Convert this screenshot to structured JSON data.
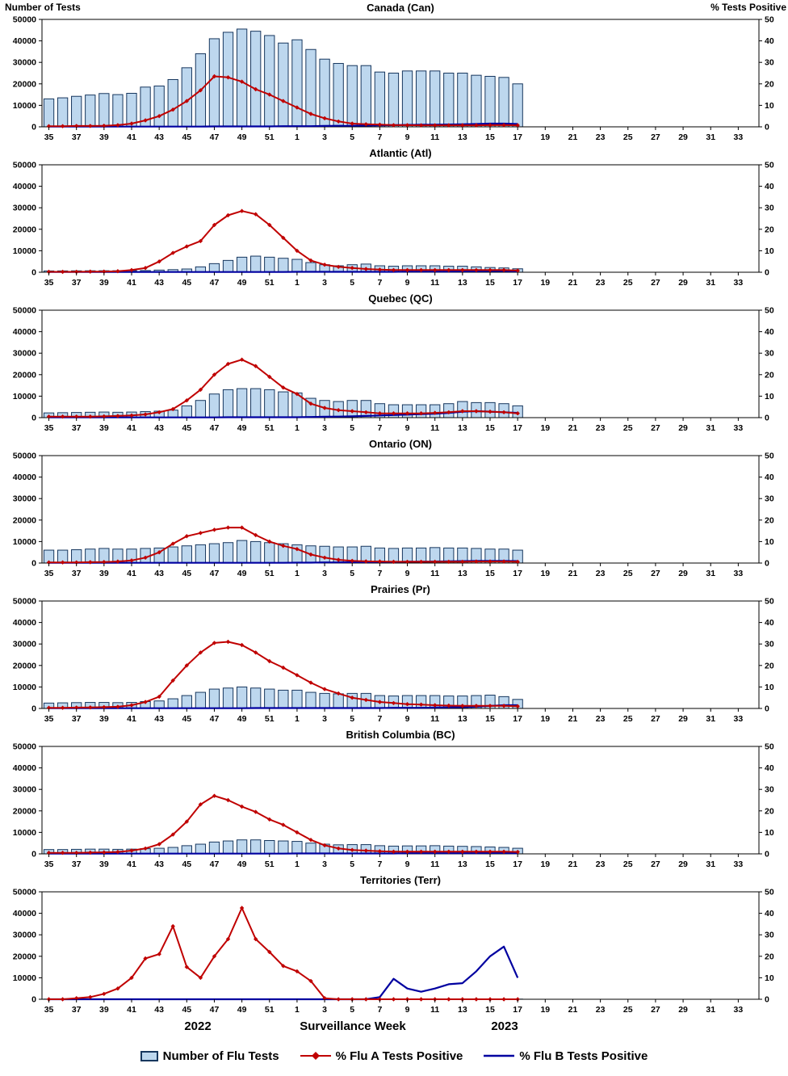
{
  "page": {
    "left_axis_title": "Number of Tests",
    "right_axis_title": "% Tests Positive",
    "x_axis_title": "Surveillance Week",
    "year_left": "2022",
    "year_right": "2023"
  },
  "legend": {
    "tests": "Number of Flu Tests",
    "fluA": "% Flu A Tests Positive",
    "fluB": "% Flu B Tests Positive"
  },
  "chart_data": {
    "type": "bar-line-combo (7 stacked panels: bars = number of flu tests on left axis, lines = % positive on right axis)",
    "weeks": [
      35,
      36,
      37,
      38,
      39,
      40,
      41,
      42,
      43,
      44,
      45,
      46,
      47,
      48,
      49,
      50,
      51,
      52,
      1,
      2,
      3,
      4,
      5,
      6,
      7,
      8,
      9,
      10,
      11,
      12,
      13,
      14,
      15,
      16,
      17,
      18,
      19,
      20,
      21,
      22,
      23,
      24,
      25,
      26,
      27,
      28,
      29,
      30,
      31,
      32,
      33,
      34
    ],
    "left_axis": {
      "min": 0,
      "max": 50000,
      "step": 10000
    },
    "right_axis": {
      "min": 0,
      "max": 50,
      "step": 10
    },
    "colors": {
      "bar_fill": "#BDD7EE",
      "bar_stroke": "#17375E",
      "flu_a": "#C00000",
      "flu_b": "#0000A0"
    },
    "panels": [
      {
        "title": "Canada (Can)",
        "tests": [
          13000,
          13500,
          14200,
          14800,
          15500,
          15000,
          15600,
          18500,
          19000,
          22000,
          27500,
          34000,
          41000,
          44000,
          45500,
          44500,
          42500,
          39000,
          40500,
          36000,
          31500,
          29500,
          28500,
          28500,
          25500,
          25000,
          26000,
          26000,
          26000,
          25000,
          25000,
          24000,
          23500,
          23000,
          20000
        ],
        "flu_a_pct": [
          0.3,
          0.3,
          0.4,
          0.4,
          0.5,
          0.8,
          1.5,
          3,
          5,
          8,
          12,
          17,
          23.5,
          23,
          21,
          17.5,
          15,
          12,
          9,
          6,
          4,
          2.5,
          1.5,
          1.2,
          1,
          0.8,
          0.8,
          0.7,
          0.7,
          0.7,
          0.7,
          0.7,
          0.8,
          0.8,
          0.7
        ],
        "flu_b_pct": [
          0.1,
          0.1,
          0.1,
          0.1,
          0.1,
          0.1,
          0.1,
          0.1,
          0.1,
          0.1,
          0.1,
          0.1,
          0.2,
          0.2,
          0.2,
          0.2,
          0.2,
          0.3,
          0.3,
          0.3,
          0.4,
          0.5,
          0.5,
          0.6,
          0.7,
          0.8,
          0.9,
          1,
          1,
          1.1,
          1.2,
          1.3,
          1.5,
          1.5,
          1.3
        ]
      },
      {
        "title": "Atlantic (Atl)",
        "tests": [
          600,
          620,
          650,
          680,
          700,
          700,
          750,
          800,
          1000,
          1200,
          1500,
          2500,
          4000,
          5500,
          7000,
          7500,
          7000,
          6500,
          6000,
          4500,
          3500,
          3000,
          3500,
          3800,
          3000,
          2800,
          3000,
          3000,
          3000,
          2800,
          2800,
          2500,
          2200,
          2000,
          1600
        ],
        "flu_a_pct": [
          0.2,
          0.2,
          0.2,
          0.3,
          0.3,
          0.5,
          1,
          2,
          5,
          9,
          12,
          14.5,
          22,
          26.5,
          28.5,
          27,
          22,
          16,
          10,
          5.5,
          3.5,
          2.5,
          2,
          1.5,
          1.2,
          1,
          1,
          1,
          1,
          1,
          1,
          1,
          1,
          1,
          0.8
        ],
        "flu_b_pct": [
          0.1,
          0.1,
          0.1,
          0.1,
          0.1,
          0.1,
          0.1,
          0.1,
          0.1,
          0.1,
          0.1,
          0.1,
          0.1,
          0.1,
          0.1,
          0.1,
          0.1,
          0.1,
          0.2,
          0.2,
          0.2,
          0.2,
          0.2,
          0.2,
          0.2,
          0.2,
          0.3,
          0.3,
          0.3,
          0.3,
          0.4,
          0.4,
          0.5,
          0.5,
          0.4
        ]
      },
      {
        "title": "Quebec (QC)",
        "tests": [
          2200,
          2300,
          2400,
          2500,
          2600,
          2500,
          2600,
          2800,
          3000,
          3500,
          5500,
          8000,
          11000,
          13000,
          13500,
          13500,
          13000,
          12000,
          11500,
          9000,
          8000,
          7500,
          8000,
          8000,
          6500,
          6000,
          6000,
          6000,
          6000,
          6500,
          7500,
          7000,
          7000,
          6500,
          5500
        ],
        "flu_a_pct": [
          0.5,
          0.5,
          0.5,
          0.5,
          0.6,
          0.8,
          1,
          1.5,
          2.5,
          4,
          8,
          13,
          20,
          25,
          27,
          24,
          19,
          14,
          11,
          6.5,
          4.5,
          3.5,
          3,
          2.5,
          2,
          2,
          2,
          2,
          2.2,
          2.5,
          3,
          3,
          2.8,
          2.5,
          2
        ],
        "flu_b_pct": [
          0.1,
          0.1,
          0.1,
          0.1,
          0.1,
          0.1,
          0.1,
          0.1,
          0.1,
          0.1,
          0.1,
          0.1,
          0.1,
          0.2,
          0.2,
          0.2,
          0.2,
          0.2,
          0.2,
          0.3,
          0.4,
          0.5,
          0.6,
          0.8,
          1,
          1.2,
          1.4,
          1.6,
          1.8,
          2.2,
          2.8,
          3,
          2.8,
          2.5,
          2.2
        ]
      },
      {
        "title": "Ontario (ON)",
        "tests": [
          6000,
          6000,
          6200,
          6500,
          6800,
          6500,
          6500,
          6800,
          7000,
          7500,
          8000,
          8500,
          9000,
          9500,
          10500,
          10000,
          9500,
          9000,
          8500,
          8000,
          7800,
          7500,
          7500,
          7800,
          7000,
          6800,
          7000,
          7000,
          7200,
          7000,
          7000,
          6800,
          6500,
          6500,
          6000
        ],
        "flu_a_pct": [
          0.3,
          0.3,
          0.3,
          0.4,
          0.5,
          0.7,
          1.2,
          2.5,
          5,
          9,
          12.5,
          14,
          15.5,
          16.5,
          16.5,
          13,
          10,
          8,
          6.5,
          4,
          2.5,
          1.5,
          1,
          0.8,
          0.7,
          0.6,
          0.6,
          0.6,
          0.6,
          0.6,
          0.6,
          0.7,
          0.7,
          0.7,
          0.6
        ],
        "flu_b_pct": [
          0.1,
          0.1,
          0.1,
          0.1,
          0.1,
          0.1,
          0.1,
          0.1,
          0.1,
          0.1,
          0.1,
          0.1,
          0.1,
          0.1,
          0.1,
          0.1,
          0.1,
          0.1,
          0.2,
          0.2,
          0.3,
          0.3,
          0.4,
          0.4,
          0.5,
          0.5,
          0.6,
          0.6,
          0.7,
          0.8,
          0.9,
          1,
          1,
          1,
          0.9
        ]
      },
      {
        "title": "Prairies (Pr)",
        "tests": [
          2500,
          2600,
          2700,
          2800,
          2800,
          2700,
          2800,
          3200,
          3500,
          4500,
          6000,
          7500,
          9000,
          9500,
          10000,
          9500,
          9000,
          8500,
          8500,
          7500,
          7000,
          6800,
          7000,
          7000,
          6000,
          5800,
          6000,
          6000,
          6000,
          5800,
          5800,
          6000,
          6200,
          5500,
          4200
        ],
        "flu_a_pct": [
          0.3,
          0.3,
          0.4,
          0.5,
          0.6,
          0.8,
          1.5,
          3,
          5.5,
          13,
          20,
          26,
          30.5,
          31,
          29.5,
          26,
          22,
          19,
          15.5,
          12,
          9,
          7,
          5,
          4,
          3,
          2.5,
          2,
          1.8,
          1.5,
          1.3,
          1.2,
          1.2,
          1.2,
          1.2,
          1
        ],
        "flu_b_pct": [
          0.1,
          0.1,
          0.1,
          0.1,
          0.1,
          0.1,
          0.1,
          0.1,
          0.1,
          0.1,
          0.1,
          0.1,
          0.1,
          0.1,
          0.1,
          0.2,
          0.2,
          0.2,
          0.2,
          0.2,
          0.2,
          0.2,
          0.2,
          0.2,
          0.2,
          0.3,
          0.3,
          0.3,
          0.4,
          0.5,
          0.6,
          0.8,
          1.2,
          1.5,
          1.5
        ]
      },
      {
        "title": "British Columbia (BC)",
        "tests": [
          2000,
          2000,
          2100,
          2200,
          2200,
          2100,
          2200,
          2400,
          2600,
          3000,
          3800,
          4500,
          5500,
          6000,
          6500,
          6500,
          6200,
          6000,
          5800,
          5000,
          4500,
          4200,
          4300,
          4300,
          3800,
          3600,
          3700,
          3700,
          3800,
          3600,
          3500,
          3400,
          3200,
          3000,
          2600
        ],
        "flu_a_pct": [
          0.5,
          0.5,
          0.5,
          0.6,
          0.7,
          0.9,
          1.5,
          2.5,
          4.5,
          9,
          15,
          23,
          27,
          25,
          22,
          19.5,
          16,
          13.5,
          10,
          6.5,
          4,
          2.5,
          1.8,
          1.5,
          1.2,
          1,
          1,
          1,
          1,
          1,
          1,
          1,
          1,
          1,
          0.9
        ],
        "flu_b_pct": [
          0.1,
          0.1,
          0.1,
          0.1,
          0.1,
          0.1,
          0.1,
          0.1,
          0.1,
          0.1,
          0.1,
          0.1,
          0.1,
          0.1,
          0.1,
          0.1,
          0.1,
          0.1,
          0.2,
          0.2,
          0.2,
          0.2,
          0.2,
          0.2,
          0.2,
          0.2,
          0.3,
          0.3,
          0.3,
          0.3,
          0.3,
          0.3,
          0.4,
          0.4,
          0.3
        ]
      },
      {
        "title": "Territories (Terr)",
        "tests": [
          60,
          60,
          60,
          70,
          70,
          70,
          80,
          90,
          100,
          120,
          150,
          150,
          150,
          150,
          150,
          150,
          140,
          130,
          120,
          110,
          100,
          100,
          100,
          100,
          90,
          90,
          90,
          90,
          90,
          90,
          90,
          90,
          90,
          90,
          70
        ],
        "flu_a_pct": [
          0,
          0,
          0.5,
          1,
          2.5,
          5,
          10,
          19,
          21,
          34,
          15,
          10,
          20,
          28,
          42.5,
          28,
          22,
          15.5,
          13,
          8.5,
          0.5,
          0,
          0,
          0,
          0,
          0,
          0,
          0,
          0,
          0,
          0,
          0,
          0,
          0,
          0
        ],
        "flu_b_pct": [
          0,
          0,
          0,
          0,
          0,
          0,
          0,
          0,
          0,
          0,
          0,
          0,
          0,
          0,
          0,
          0,
          0,
          0,
          0,
          0,
          0,
          0,
          0,
          0,
          1,
          9.5,
          5,
          3.5,
          5,
          7,
          7.5,
          13,
          20,
          24.5,
          10
        ]
      }
    ]
  }
}
